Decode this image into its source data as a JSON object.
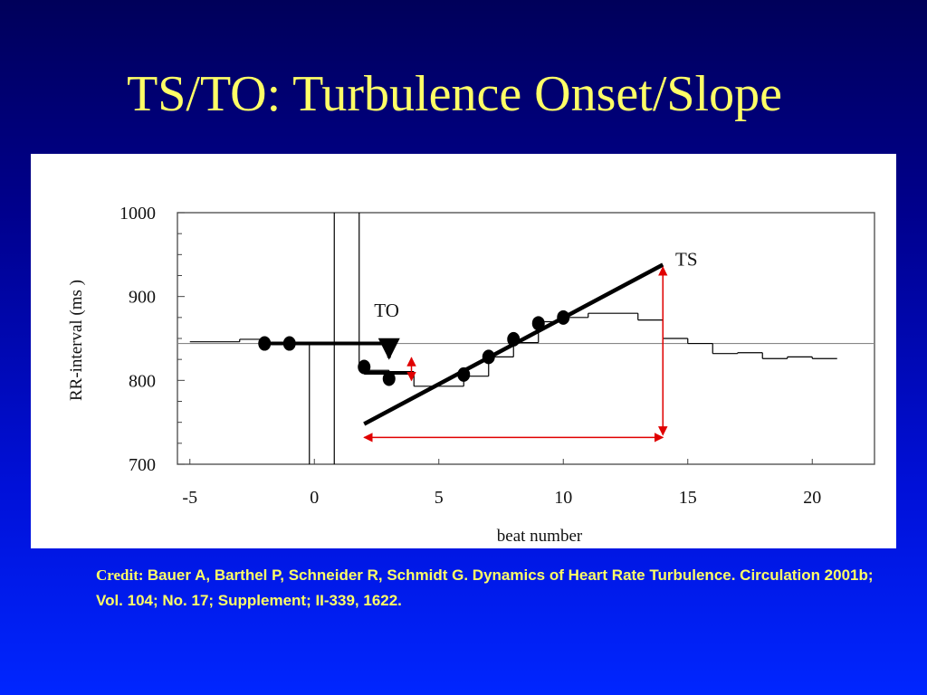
{
  "slide": {
    "title": "TS/TO: Turbulence Onset/Slope"
  },
  "credit": {
    "label": "Credit:",
    "text": "Bauer A, Barthel P, Schneider R, Schmidt G. Dynamics of Heart Rate Turbulence. Circulation 2001b; Vol. 104; No. 17; Supplement; II-339, 1622."
  },
  "colors": {
    "background_top": "#00005a",
    "background_bottom": "#0026ff",
    "title": "#ffff66",
    "annotation_arrows": "#e00000"
  },
  "chart_data": {
    "type": "line",
    "xlabel": "beat number",
    "ylabel": "RR-interval (ms )",
    "xlim": [
      -5.5,
      22.5
    ],
    "ylim": [
      700,
      1000
    ],
    "xticks": [
      -5,
      0,
      5,
      10,
      15,
      20
    ],
    "yticks": [
      700,
      800,
      900,
      1000
    ],
    "grid": false,
    "reference_line_y": 844,
    "rr_step_trace": [
      {
        "x0": -5,
        "x1": -3,
        "y": 846
      },
      {
        "x0": -3,
        "x1": -2,
        "y": 849
      },
      {
        "x0": -2,
        "x1": -1,
        "y": 845
      },
      {
        "x0": -1,
        "x1": 0,
        "y": 843
      },
      {
        "x0": 2,
        "x1": 3,
        "y": 812
      },
      {
        "x0": 3,
        "x1": 4,
        "y": 810
      },
      {
        "x0": 4,
        "x1": 6,
        "y": 793
      },
      {
        "x0": 6,
        "x1": 7,
        "y": 805
      },
      {
        "x0": 7,
        "x1": 8,
        "y": 828
      },
      {
        "x0": 8,
        "x1": 9,
        "y": 845
      },
      {
        "x0": 9,
        "x1": 10,
        "y": 870
      },
      {
        "x0": 10,
        "x1": 11,
        "y": 875
      },
      {
        "x0": 11,
        "x1": 13,
        "y": 880
      },
      {
        "x0": 13,
        "x1": 14,
        "y": 872
      },
      {
        "x0": 14,
        "x1": 15,
        "y": 850
      },
      {
        "x0": 15,
        "x1": 16,
        "y": 844
      },
      {
        "x0": 16,
        "x1": 17,
        "y": 832
      },
      {
        "x0": 17,
        "x1": 18,
        "y": 833
      },
      {
        "x0": 18,
        "x1": 19,
        "y": 826
      },
      {
        "x0": 19,
        "x1": 20,
        "y": 828
      },
      {
        "x0": 20,
        "x1": 21,
        "y": 826
      }
    ],
    "vertical_markers": [
      {
        "x": -0.2,
        "y0": 700,
        "y1": 844
      },
      {
        "x": 0.8,
        "y0": 700,
        "y1": 1000
      },
      {
        "x": 1.8,
        "y0": 815,
        "y1": 1000
      }
    ],
    "points": [
      {
        "x": -2,
        "y": 844
      },
      {
        "x": -1,
        "y": 844
      },
      {
        "x": 2,
        "y": 816
      },
      {
        "x": 3,
        "y": 802
      },
      {
        "x": 6,
        "y": 807
      },
      {
        "x": 7,
        "y": 828
      },
      {
        "x": 8,
        "y": 849
      },
      {
        "x": 9,
        "y": 868
      },
      {
        "x": 10,
        "y": 875
      }
    ],
    "onset_before_line": [
      [
        -2,
        844
      ],
      [
        3,
        844
      ],
      [
        3,
        827
      ]
    ],
    "onset_after_line": [
      [
        2,
        809
      ],
      [
        4,
        809
      ]
    ],
    "slope_line": [
      [
        2,
        748
      ],
      [
        14,
        938
      ]
    ],
    "annotations": [
      {
        "text": "TO",
        "x": 2.4,
        "y": 876
      },
      {
        "text": "TS",
        "x": 14.5,
        "y": 937
      }
    ],
    "onset_arrow": {
      "x": 3.9,
      "y0": 800,
      "y1": 827
    },
    "slope_vertical_arrow": {
      "x": 14,
      "y0": 735,
      "y1": 935
    },
    "slope_horizontal_arrow": {
      "x0": 2,
      "x1": 14,
      "y": 732
    }
  }
}
